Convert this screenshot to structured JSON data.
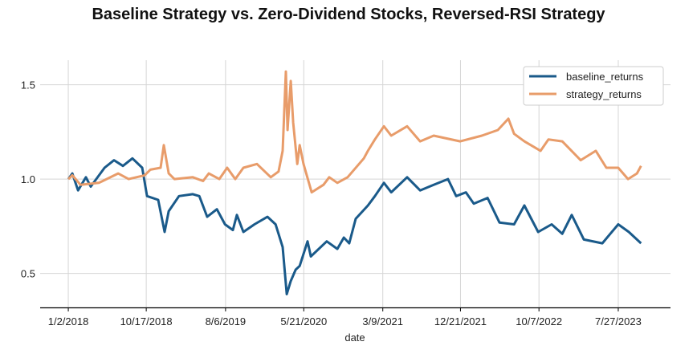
{
  "chart_data": {
    "type": "line",
    "title": "Baseline Strategy vs. Zero-Dividend Stocks, Reversed-RSI Strategy",
    "xlabel": "date",
    "ylabel": "",
    "xlim": [
      "2017-09-20",
      "2024-02-05"
    ],
    "ylim": [
      0.32,
      1.63
    ],
    "x_ticks": [
      "1/2/2018",
      "10/17/2018",
      "8/6/2019",
      "5/21/2020",
      "3/9/2021",
      "12/21/2021",
      "10/7/2022",
      "7/27/2023"
    ],
    "x_tick_dates": [
      "2018-01-02",
      "2018-10-17",
      "2019-08-06",
      "2020-05-21",
      "2021-03-09",
      "2021-12-21",
      "2022-10-07",
      "2023-07-27"
    ],
    "y_ticks": [
      0.5,
      1.0,
      1.5
    ],
    "y_tick_labels": [
      "0.5",
      "1.0",
      "1.5"
    ],
    "grid": true,
    "legend_position": "top-right",
    "series": [
      {
        "name": "baseline_returns",
        "color": "#1a5a8a",
        "points": [
          [
            "2018-01-02",
            1.0
          ],
          [
            "2018-01-17",
            1.03
          ],
          [
            "2018-02-07",
            0.94
          ],
          [
            "2018-03-08",
            1.01
          ],
          [
            "2018-03-26",
            0.96
          ],
          [
            "2018-05-16",
            1.06
          ],
          [
            "2018-06-20",
            1.1
          ],
          [
            "2018-07-23",
            1.07
          ],
          [
            "2018-08-27",
            1.11
          ],
          [
            "2018-10-02",
            1.06
          ],
          [
            "2018-10-20",
            0.91
          ],
          [
            "2018-11-30",
            0.89
          ],
          [
            "2018-12-24",
            0.72
          ],
          [
            "2019-01-08",
            0.83
          ],
          [
            "2019-02-15",
            0.91
          ],
          [
            "2019-04-07",
            0.92
          ],
          [
            "2019-05-01",
            0.91
          ],
          [
            "2019-05-30",
            0.8
          ],
          [
            "2019-07-05",
            0.84
          ],
          [
            "2019-08-04",
            0.76
          ],
          [
            "2019-09-02",
            0.73
          ],
          [
            "2019-09-17",
            0.81
          ],
          [
            "2019-10-11",
            0.72
          ],
          [
            "2019-11-21",
            0.76
          ],
          [
            "2020-01-08",
            0.8
          ],
          [
            "2020-02-07",
            0.76
          ],
          [
            "2020-03-04",
            0.64
          ],
          [
            "2020-03-19",
            0.39
          ],
          [
            "2020-04-03",
            0.46
          ],
          [
            "2020-04-21",
            0.52
          ],
          [
            "2020-05-06",
            0.54
          ],
          [
            "2020-06-04",
            0.67
          ],
          [
            "2020-06-16",
            0.59
          ],
          [
            "2020-08-14",
            0.67
          ],
          [
            "2020-09-22",
            0.63
          ],
          [
            "2020-10-16",
            0.69
          ],
          [
            "2020-11-05",
            0.66
          ],
          [
            "2020-11-29",
            0.79
          ],
          [
            "2021-01-13",
            0.86
          ],
          [
            "2021-02-08",
            0.91
          ],
          [
            "2021-03-13",
            0.98
          ],
          [
            "2021-04-09",
            0.93
          ],
          [
            "2021-06-07",
            1.01
          ],
          [
            "2021-07-25",
            0.94
          ],
          [
            "2021-09-13",
            0.97
          ],
          [
            "2021-11-05",
            1.0
          ],
          [
            "2021-12-05",
            0.91
          ],
          [
            "2022-01-10",
            0.93
          ],
          [
            "2022-02-08",
            0.87
          ],
          [
            "2022-03-31",
            0.9
          ],
          [
            "2022-05-14",
            0.77
          ],
          [
            "2022-07-07",
            0.76
          ],
          [
            "2022-08-14",
            0.86
          ],
          [
            "2022-10-04",
            0.72
          ],
          [
            "2022-11-23",
            0.76
          ],
          [
            "2023-01-01",
            0.71
          ],
          [
            "2023-02-05",
            0.81
          ],
          [
            "2023-03-22",
            0.68
          ],
          [
            "2023-05-29",
            0.66
          ],
          [
            "2023-07-27",
            0.76
          ],
          [
            "2023-09-04",
            0.72
          ],
          [
            "2023-10-19",
            0.66
          ]
        ]
      },
      {
        "name": "strategy_returns",
        "color": "#e89c6a",
        "points": [
          [
            "2018-01-02",
            1.0
          ],
          [
            "2018-01-17",
            1.02
          ],
          [
            "2018-02-16",
            0.97
          ],
          [
            "2018-04-25",
            0.98
          ],
          [
            "2018-07-05",
            1.03
          ],
          [
            "2018-08-13",
            1.0
          ],
          [
            "2018-10-11",
            1.02
          ],
          [
            "2018-11-01",
            1.05
          ],
          [
            "2018-12-09",
            1.06
          ],
          [
            "2018-12-21",
            1.18
          ],
          [
            "2019-01-08",
            1.03
          ],
          [
            "2019-01-29",
            1.0
          ],
          [
            "2019-04-07",
            1.01
          ],
          [
            "2019-05-15",
            0.99
          ],
          [
            "2019-06-05",
            1.03
          ],
          [
            "2019-07-14",
            1.0
          ],
          [
            "2019-08-12",
            1.06
          ],
          [
            "2019-09-11",
            1.0
          ],
          [
            "2019-10-11",
            1.06
          ],
          [
            "2019-11-30",
            1.08
          ],
          [
            "2020-01-20",
            1.01
          ],
          [
            "2020-02-18",
            1.04
          ],
          [
            "2020-03-04",
            1.15
          ],
          [
            "2020-03-16",
            1.57
          ],
          [
            "2020-03-22",
            1.26
          ],
          [
            "2020-04-03",
            1.52
          ],
          [
            "2020-04-12",
            1.3
          ],
          [
            "2020-04-27",
            1.08
          ],
          [
            "2020-05-06",
            1.18
          ],
          [
            "2020-05-20",
            1.08
          ],
          [
            "2020-06-19",
            0.93
          ],
          [
            "2020-08-02",
            0.97
          ],
          [
            "2020-08-23",
            1.01
          ],
          [
            "2020-09-22",
            0.98
          ],
          [
            "2020-10-30",
            1.01
          ],
          [
            "2020-12-11",
            1.08
          ],
          [
            "2020-12-29",
            1.11
          ],
          [
            "2021-01-13",
            1.15
          ],
          [
            "2021-02-08",
            1.21
          ],
          [
            "2021-03-13",
            1.28
          ],
          [
            "2021-04-09",
            1.23
          ],
          [
            "2021-06-07",
            1.28
          ],
          [
            "2021-07-25",
            1.2
          ],
          [
            "2021-09-13",
            1.23
          ],
          [
            "2021-12-20",
            1.2
          ],
          [
            "2022-03-10",
            1.23
          ],
          [
            "2022-05-08",
            1.26
          ],
          [
            "2022-06-16",
            1.32
          ],
          [
            "2022-07-07",
            1.24
          ],
          [
            "2022-08-14",
            1.2
          ],
          [
            "2022-10-13",
            1.15
          ],
          [
            "2022-11-11",
            1.21
          ],
          [
            "2023-01-01",
            1.2
          ],
          [
            "2023-03-10",
            1.1
          ],
          [
            "2023-05-05",
            1.15
          ],
          [
            "2023-06-13",
            1.06
          ],
          [
            "2023-07-27",
            1.06
          ],
          [
            "2023-09-01",
            1.0
          ],
          [
            "2023-10-04",
            1.03
          ],
          [
            "2023-10-19",
            1.07
          ]
        ]
      }
    ]
  }
}
